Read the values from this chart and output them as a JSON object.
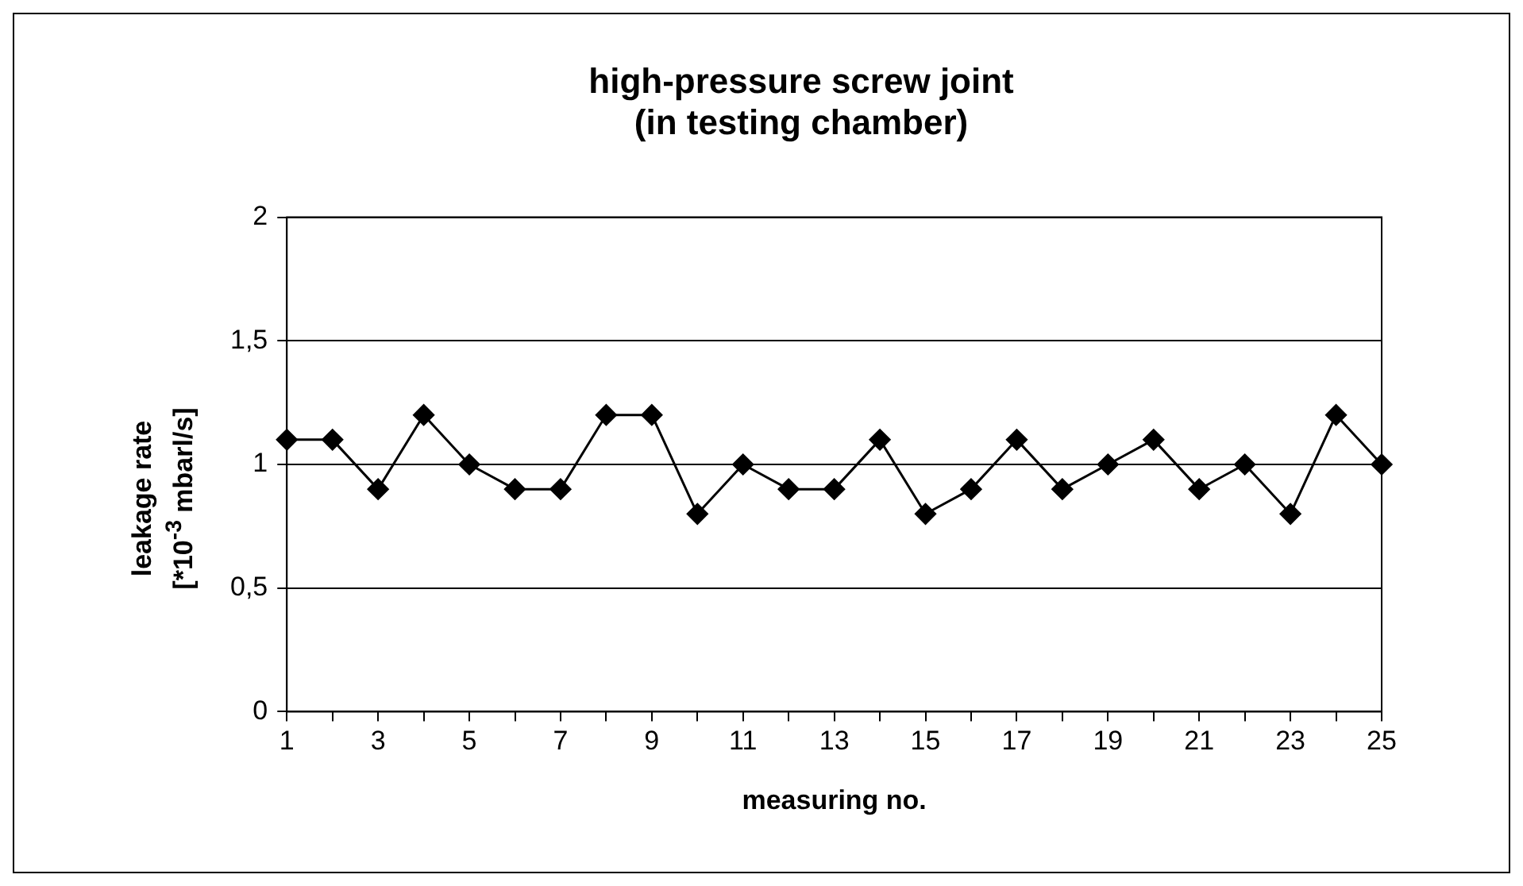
{
  "chart_data": {
    "type": "line",
    "title": "high-pressure screw joint\n(in testing chamber)",
    "xlabel": "measuring no.",
    "ylabel": "leakage rate\n[*10$^{-3}$ mbarl/s]",
    "x": [
      1,
      2,
      3,
      4,
      5,
      6,
      7,
      8,
      9,
      10,
      11,
      12,
      13,
      14,
      15,
      16,
      17,
      18,
      19,
      20,
      21,
      22,
      23,
      24,
      25
    ],
    "xlim": [
      1,
      25
    ],
    "xticks": [
      1,
      {
        "value": 2,
        "label": null
      },
      3,
      {
        "value": 4,
        "label": null
      },
      5,
      {
        "value": 6,
        "label": null
      },
      7,
      {
        "value": 8,
        "label": null
      },
      9,
      {
        "value": 10,
        "label": null
      },
      11,
      {
        "value": 12,
        "label": null
      },
      13,
      {
        "value": 14,
        "label": null
      },
      15,
      {
        "value": 16,
        "label": null
      },
      17,
      {
        "value": 18,
        "label": null
      },
      19,
      {
        "value": 20,
        "label": null
      },
      21,
      {
        "value": 22,
        "label": null
      },
      23,
      {
        "value": 24,
        "label": null
      },
      25
    ],
    "series": [
      {
        "color": "#000000",
        "values": [
          1.1,
          1.1,
          0.9,
          1.2,
          1.0,
          0.9,
          0.9,
          1.2,
          1.2,
          0.8,
          1.0,
          0.9,
          0.9,
          1.1,
          0.8,
          0.9,
          1.1,
          0.9,
          1.0,
          1.1,
          0.9,
          1.0,
          0.8,
          1.2,
          1.0
        ]
      }
    ],
    "ylim": [
      0,
      2
    ],
    "yticks": [
      0,
      {
        "value": 0.5,
        "label": "0,5"
      },
      1,
      {
        "value": 1.5,
        "label": "1,5"
      },
      2
    ],
    "grid": "y",
    "legend": false,
    "marker": "diamond",
    "line_style": "solid"
  }
}
